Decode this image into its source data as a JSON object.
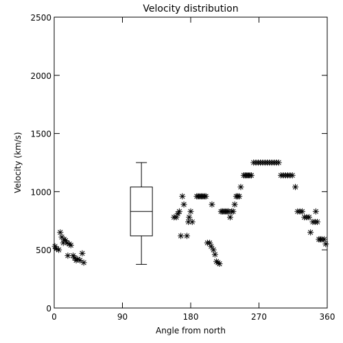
{
  "chart_data": {
    "type": "scatter",
    "title": "Velocity distribution",
    "xlabel": "Angle from north",
    "ylabel": "Velocity (km/s)",
    "xlim": [
      0,
      360
    ],
    "ylim": [
      0,
      2500
    ],
    "xticks": [
      0,
      90,
      180,
      270,
      360
    ],
    "yticks": [
      0,
      500,
      1000,
      1500,
      2000,
      2500
    ],
    "grid": false,
    "marker": "asterisk",
    "boxplot": {
      "x": 115,
      "whisker_low": 375,
      "q1": 620,
      "median": 830,
      "q3": 1040,
      "whisker_high": 1250
    },
    "points": [
      {
        "x": 1,
        "y": 530
      },
      {
        "x": 3,
        "y": 510
      },
      {
        "x": 6,
        "y": 500
      },
      {
        "x": 8,
        "y": 650
      },
      {
        "x": 10,
        "y": 610
      },
      {
        "x": 12,
        "y": 560
      },
      {
        "x": 13,
        "y": 590
      },
      {
        "x": 15,
        "y": 580
      },
      {
        "x": 17,
        "y": 560
      },
      {
        "x": 18,
        "y": 450
      },
      {
        "x": 20,
        "y": 550
      },
      {
        "x": 22,
        "y": 540
      },
      {
        "x": 25,
        "y": 450
      },
      {
        "x": 27,
        "y": 430
      },
      {
        "x": 29,
        "y": 410
      },
      {
        "x": 31,
        "y": 420
      },
      {
        "x": 34,
        "y": 410
      },
      {
        "x": 37,
        "y": 470
      },
      {
        "x": 39,
        "y": 390
      },
      {
        "x": 158,
        "y": 780
      },
      {
        "x": 161,
        "y": 780
      },
      {
        "x": 163,
        "y": 810
      },
      {
        "x": 165,
        "y": 830
      },
      {
        "x": 167,
        "y": 620
      },
      {
        "x": 169,
        "y": 960
      },
      {
        "x": 171,
        "y": 890
      },
      {
        "x": 175,
        "y": 620
      },
      {
        "x": 177,
        "y": 740
      },
      {
        "x": 178,
        "y": 780
      },
      {
        "x": 180,
        "y": 830
      },
      {
        "x": 182,
        "y": 740
      },
      {
        "x": 188,
        "y": 960
      },
      {
        "x": 190,
        "y": 960
      },
      {
        "x": 192,
        "y": 960
      },
      {
        "x": 194,
        "y": 960
      },
      {
        "x": 196,
        "y": 960
      },
      {
        "x": 198,
        "y": 960
      },
      {
        "x": 200,
        "y": 960
      },
      {
        "x": 202,
        "y": 560
      },
      {
        "x": 205,
        "y": 560
      },
      {
        "x": 207,
        "y": 530
      },
      {
        "x": 208,
        "y": 890
      },
      {
        "x": 210,
        "y": 500
      },
      {
        "x": 212,
        "y": 460
      },
      {
        "x": 214,
        "y": 400
      },
      {
        "x": 216,
        "y": 390
      },
      {
        "x": 218,
        "y": 380
      },
      {
        "x": 220,
        "y": 830
      },
      {
        "x": 222,
        "y": 830
      },
      {
        "x": 224,
        "y": 830
      },
      {
        "x": 226,
        "y": 830
      },
      {
        "x": 228,
        "y": 830
      },
      {
        "x": 230,
        "y": 830
      },
      {
        "x": 232,
        "y": 780
      },
      {
        "x": 234,
        "y": 830
      },
      {
        "x": 236,
        "y": 830
      },
      {
        "x": 238,
        "y": 890
      },
      {
        "x": 240,
        "y": 960
      },
      {
        "x": 242,
        "y": 960
      },
      {
        "x": 244,
        "y": 960
      },
      {
        "x": 246,
        "y": 1040
      },
      {
        "x": 250,
        "y": 1140
      },
      {
        "x": 252,
        "y": 1140
      },
      {
        "x": 254,
        "y": 1140
      },
      {
        "x": 256,
        "y": 1140
      },
      {
        "x": 258,
        "y": 1140
      },
      {
        "x": 260,
        "y": 1140
      },
      {
        "x": 263,
        "y": 1250
      },
      {
        "x": 266,
        "y": 1250
      },
      {
        "x": 269,
        "y": 1250
      },
      {
        "x": 272,
        "y": 1250
      },
      {
        "x": 275,
        "y": 1250
      },
      {
        "x": 278,
        "y": 1250
      },
      {
        "x": 281,
        "y": 1250
      },
      {
        "x": 284,
        "y": 1250
      },
      {
        "x": 287,
        "y": 1250
      },
      {
        "x": 290,
        "y": 1250
      },
      {
        "x": 293,
        "y": 1250
      },
      {
        "x": 296,
        "y": 1250
      },
      {
        "x": 299,
        "y": 1140
      },
      {
        "x": 302,
        "y": 1140
      },
      {
        "x": 305,
        "y": 1140
      },
      {
        "x": 308,
        "y": 1140
      },
      {
        "x": 311,
        "y": 1140
      },
      {
        "x": 314,
        "y": 1140
      },
      {
        "x": 318,
        "y": 1040
      },
      {
        "x": 321,
        "y": 830
      },
      {
        "x": 324,
        "y": 830
      },
      {
        "x": 327,
        "y": 830
      },
      {
        "x": 330,
        "y": 780
      },
      {
        "x": 333,
        "y": 780
      },
      {
        "x": 336,
        "y": 780
      },
      {
        "x": 338,
        "y": 650
      },
      {
        "x": 341,
        "y": 740
      },
      {
        "x": 344,
        "y": 740
      },
      {
        "x": 345,
        "y": 830
      },
      {
        "x": 347,
        "y": 740
      },
      {
        "x": 349,
        "y": 590
      },
      {
        "x": 351,
        "y": 590
      },
      {
        "x": 353,
        "y": 590
      },
      {
        "x": 356,
        "y": 590
      },
      {
        "x": 358,
        "y": 550
      }
    ]
  }
}
